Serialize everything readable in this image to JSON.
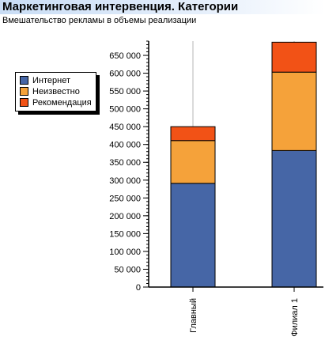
{
  "header": {
    "title": "Маркетинговая интервенция. Категории",
    "subtitle": "Вмешательство рекламы в объемы реализации"
  },
  "colors": {
    "internet": "#4666a6",
    "unknown": "#f5a23a",
    "recommendation": "#f25216",
    "gridline": "#b4b4b4",
    "axis": "#000000"
  },
  "chart_data": {
    "type": "bar",
    "stacked": true,
    "categories": [
      "Главный",
      "Филиал 1"
    ],
    "series": [
      {
        "name": "Интернет",
        "color": "#4666a6",
        "values": [
          291000,
          383000
        ]
      },
      {
        "name": "Неизвестно",
        "color": "#f5a23a",
        "values": [
          120000,
          220000
        ]
      },
      {
        "name": "Рекомендация",
        "color": "#f25216",
        "values": [
          39000,
          84000
        ]
      }
    ],
    "ylim": [
      0,
      690000
    ],
    "yticks": [
      0,
      50000,
      100000,
      150000,
      200000,
      250000,
      300000,
      350000,
      400000,
      450000,
      500000,
      550000,
      600000,
      650000
    ],
    "ytick_labels": [
      "0",
      "50 000",
      "100 000",
      "150 000",
      "200 000",
      "250 000",
      "300 000",
      "350 000",
      "400 000",
      "450 000",
      "500 000",
      "550 000",
      "600 000",
      "650 000"
    ],
    "xlabel": "",
    "ylabel": "",
    "grid": "vertical",
    "legend_placement": "left"
  }
}
